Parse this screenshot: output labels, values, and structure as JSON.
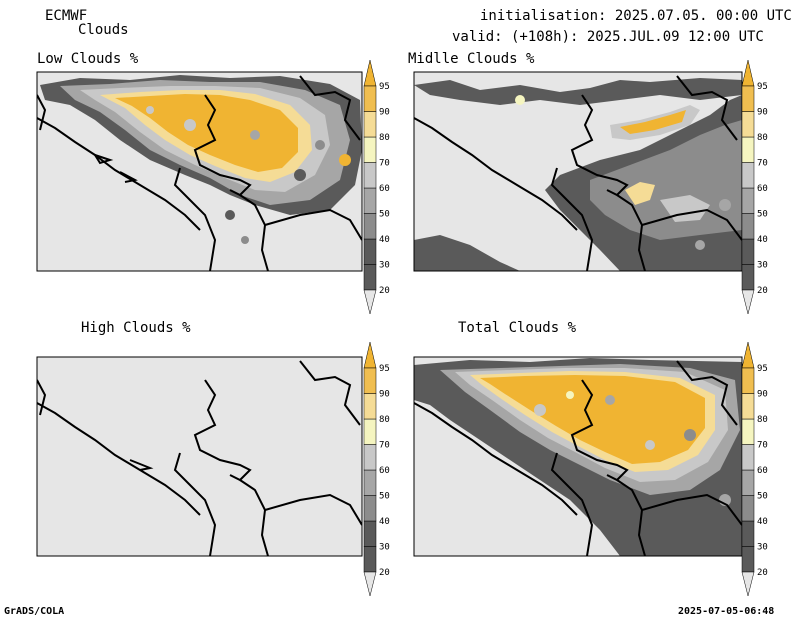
{
  "header": {
    "model": "ECMWF",
    "product": "Clouds",
    "init_line": "initialisation: 2025.07.05. 00:00 UTC",
    "valid_line": "valid: (+108h): 2025.JUL.09 12:00 UTC"
  },
  "panels": [
    {
      "id": "low",
      "title": "Low Clouds %"
    },
    {
      "id": "middle",
      "title": "Midlle Clouds %"
    },
    {
      "id": "high",
      "title": "High Clouds %"
    },
    {
      "id": "total",
      "title": "Total Clouds %"
    }
  ],
  "colorbar": {
    "levels": [
      "20",
      "30",
      "40",
      "50",
      "60",
      "70",
      "80",
      "90",
      "95"
    ],
    "colors": {
      "lt20": "#e6e6e6",
      "20_30": "#5a5a5a",
      "30_40": "#5a5a5a",
      "40_50": "#8c8c8c",
      "50_60": "#a6a6a6",
      "60_70": "#c8c8c8",
      "70_80": "#f5f5c0",
      "80_90": "#f5dc96",
      "90_95": "#f0be50",
      "gt95": "#f0b432"
    }
  },
  "footer": {
    "left": "GrADS/COLA",
    "right": "2025-07-05-06:48"
  }
}
